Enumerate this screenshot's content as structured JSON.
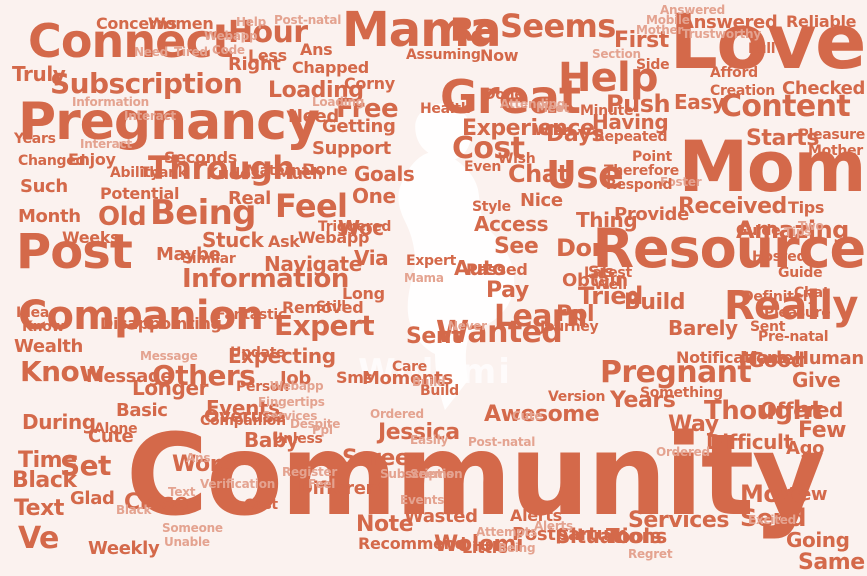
{
  "colors": {
    "background": "#fbf2ef",
    "word": "#d4694a",
    "word_light": "#e4a390",
    "logo": "#ffffff"
  },
  "brand_text": "Wolomi",
  "words": [
    "Community",
    "Love",
    "Mom",
    "Resource",
    "Pregnancy",
    "Connect",
    "Mama",
    "Great",
    "Post",
    "Companion",
    "Subscription",
    "Help",
    "Being",
    "Really",
    "Use",
    "Through",
    "Information",
    "Feel",
    "Pregnant",
    "Learn",
    "Wanted",
    "Expert",
    "Others",
    "Thought",
    "Know",
    "Hour",
    "Re",
    "Seems",
    "Content",
    "Free",
    "Cost",
    "Amazing",
    "Recommend",
    "Wolomi",
    "Postpartum",
    "Services",
    "Set",
    "Old",
    "Ve",
    "Weekly",
    "Events",
    "Tried",
    "Years",
    "Way",
    "More",
    "Stuck",
    "Jessica",
    "Screen",
    "Awesome",
    "Answered",
    "Reliable",
    "First",
    "Now",
    "Days",
    "Starts",
    "Access",
    "See",
    "Auto",
    "Don",
    "Pay",
    "Sent",
    "Ppl",
    "Sms",
    "Moments",
    "Navigate",
    "Webapp",
    "Via",
    "Woc",
    "Ask",
    "Maybe",
    "Month",
    "Weeks",
    "Potential",
    "Goals",
    "One",
    "Done",
    "Much",
    "Real",
    "Support",
    "Getting",
    "Need",
    "Loading",
    "Right",
    "Chapped",
    "Corny",
    "Truly",
    "Concerns",
    "Women",
    "Less",
    "Ans",
    "Push",
    "Easy",
    "Checked",
    "Creation",
    "Having",
    "Experience",
    "Chat",
    "Nice",
    "Thing",
    "Provide",
    "Received",
    "Tips",
    "Sis",
    "Passed",
    "Obtain",
    "Build",
    "Barely",
    "Notifications",
    "Made",
    "Human",
    "Good",
    "Give",
    "Few",
    "Ago",
    "Difficult",
    "Offered",
    "Send",
    "View",
    "Going",
    "Same",
    "Tools",
    "Situations",
    "Alerts",
    "Little",
    "Wasted",
    "Note",
    "Different",
    "Baby",
    "Overuse",
    "Job",
    "Longer",
    "Basic",
    "Cute",
    "Time",
    "Black",
    "Text",
    "During",
    "Alone",
    "Glad",
    "Close",
    "Word",
    "Expecting",
    "Update",
    "Message",
    "Wealth",
    "Idea",
    "Fantastic",
    "Disappointing",
    "Removed",
    "Still",
    "Long",
    "Similar",
    "Triggered",
    "Kudos",
    "Maternal",
    "Thank",
    "Ability",
    "Enjoy",
    "Such",
    "Changed",
    "Years",
    "Interact",
    "Information",
    "Seconds",
    "Wish",
    "Mother",
    "Pleasure",
    "Guide",
    "Foster",
    "Section",
    "Side",
    "Afford",
    "Minute",
    "Hosted",
    "Latest",
    "Well",
    "Version",
    "Cute",
    "Full",
    "Mobile",
    "Trustworthy",
    "Help",
    "Post-natal",
    "Webapp",
    "Code",
    "Tired",
    "Need",
    "Assuming",
    "Health",
    "Done",
    "Attending",
    "Meet",
    "Wish",
    "Repeated",
    "Therefore",
    "Respond",
    "Point",
    "Even",
    "Style",
    "Journey",
    "Ordered",
    "Excited",
    "Regret",
    "Being",
    "Post-natal",
    "Easily",
    "Someone",
    "Despite",
    "Unable",
    "Pleasure",
    "Ans",
    "Cost",
    "Verification",
    "Person",
    "Webapp",
    "Fingertips",
    "Services",
    "Ppl",
    "Register",
    "Feel",
    "Unless",
    "Care",
    "Build",
    "Something",
    "Sent",
    "Pre-natal",
    "Definitely",
    "Guide",
    "Chat",
    "Two",
    "Companion",
    "Know",
    "Tips",
    "Build",
    "Expert",
    "Mama",
    "Never",
    "Attempts",
    "Ordered",
    "Subscription",
    "Seems",
    "Answered",
    "Loading",
    "Mother",
    "Alerts",
    "Events",
    "Text",
    "Black",
    "Message",
    "Interact"
  ]
}
